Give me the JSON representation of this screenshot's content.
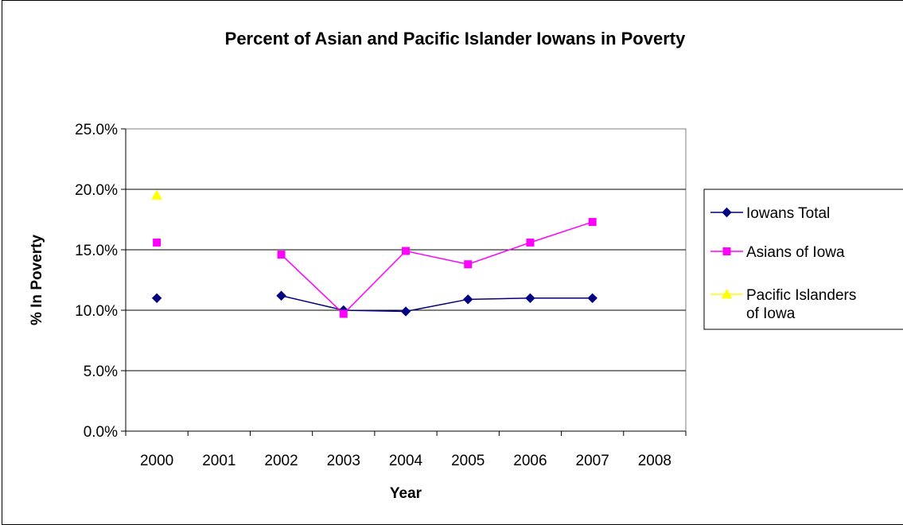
{
  "chart_data": {
    "type": "line",
    "title": "Percent of Asian and Pacific Islander Iowans in Poverty",
    "xlabel": "Year",
    "ylabel": "% In Poverty",
    "categories": [
      "2000",
      "2001",
      "2002",
      "2003",
      "2004",
      "2005",
      "2006",
      "2007",
      "2008"
    ],
    "yticks": [
      "0.0%",
      "5.0%",
      "10.0%",
      "15.0%",
      "20.0%",
      "25.0%"
    ],
    "ylim": [
      0,
      25
    ],
    "grid": true,
    "legend_position": "right",
    "series": [
      {
        "name": "Iowans Total",
        "legend_lines": [
          "Iowans Total"
        ],
        "color": "#000080",
        "marker": "diamond",
        "values": [
          11.0,
          null,
          11.2,
          10.0,
          9.9,
          10.9,
          11.0,
          11.0,
          null
        ]
      },
      {
        "name": "Asians of Iowa",
        "legend_lines": [
          "Asians of Iowa"
        ],
        "color": "#FF00FF",
        "marker": "square",
        "values": [
          15.6,
          null,
          14.6,
          9.7,
          14.9,
          13.8,
          15.6,
          17.3,
          null
        ]
      },
      {
        "name": "Pacific Islanders of Iowa",
        "legend_lines": [
          "Pacific Islanders",
          "of Iowa"
        ],
        "color": "#FFFF00",
        "marker": "triangle",
        "values": [
          19.5,
          null,
          null,
          null,
          null,
          null,
          null,
          null,
          null
        ]
      }
    ]
  }
}
